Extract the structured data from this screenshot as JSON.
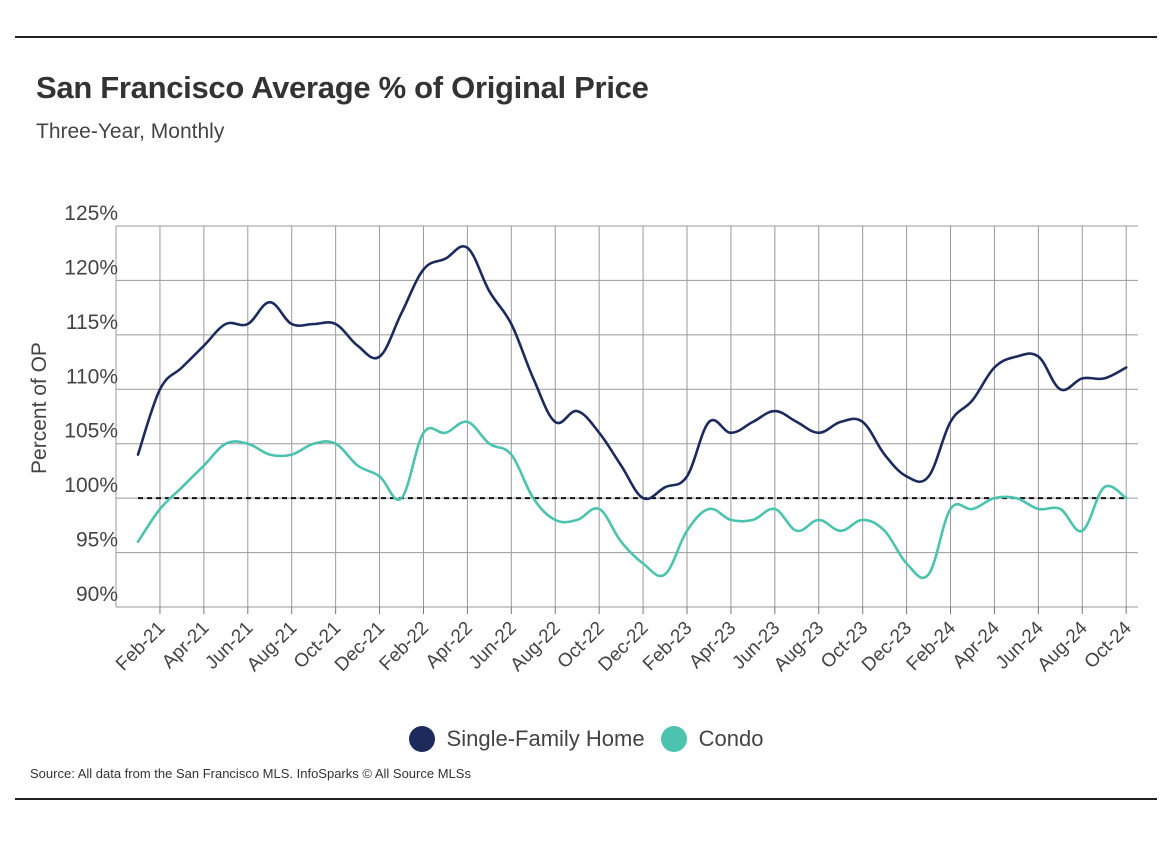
{
  "title": "San Francisco Average % of Original Price",
  "subtitle": "Three-Year, Monthly",
  "source": "Source:  All data from the San Francisco MLS. InfoSparks © All Source MLSs",
  "chart_data": {
    "type": "line",
    "title": "San Francisco Average % of Original Price",
    "subtitle": "Three-Year, Monthly",
    "xlabel": "",
    "ylabel": "Percent of OP",
    "ylim": [
      90,
      125
    ],
    "yticks": [
      90,
      95,
      100,
      105,
      110,
      115,
      120,
      125
    ],
    "ytick_labels": [
      "90%",
      "95%",
      "100%",
      "105%",
      "110%",
      "115%",
      "120%",
      "125%"
    ],
    "grid": true,
    "legend_position": "bottom",
    "reference_line": {
      "y": 100,
      "style": "dashed"
    },
    "x": [
      "Jan-21",
      "Feb-21",
      "Mar-21",
      "Apr-21",
      "May-21",
      "Jun-21",
      "Jul-21",
      "Aug-21",
      "Sep-21",
      "Oct-21",
      "Nov-21",
      "Dec-21",
      "Jan-22",
      "Feb-22",
      "Mar-22",
      "Apr-22",
      "May-22",
      "Jun-22",
      "Jul-22",
      "Aug-22",
      "Sep-22",
      "Oct-22",
      "Nov-22",
      "Dec-22",
      "Jan-23",
      "Feb-23",
      "Mar-23",
      "Apr-23",
      "May-23",
      "Jun-23",
      "Jul-23",
      "Aug-23",
      "Sep-23",
      "Oct-23",
      "Nov-23",
      "Dec-23",
      "Jan-24",
      "Feb-24",
      "Mar-24",
      "Apr-24",
      "May-24",
      "Jun-24",
      "Jul-24",
      "Aug-24",
      "Sep-24",
      "Oct-24"
    ],
    "x_tick_labels": [
      "Feb-21",
      "Apr-21",
      "Jun-21",
      "Aug-21",
      "Oct-21",
      "Dec-21",
      "Feb-22",
      "Apr-22",
      "Jun-22",
      "Aug-22",
      "Oct-22",
      "Dec-22",
      "Feb-23",
      "Apr-23",
      "Jun-23",
      "Aug-23",
      "Oct-23",
      "Dec-23",
      "Feb-24",
      "Apr-24",
      "Jun-24",
      "Aug-24",
      "Oct-24"
    ],
    "series": [
      {
        "name": "Single-Family Home",
        "color": "#1c2a5c",
        "values": [
          104,
          110,
          112,
          114,
          116,
          116,
          118,
          116,
          116,
          116,
          114,
          113,
          117,
          121,
          122,
          123,
          119,
          116,
          111,
          107,
          108,
          106,
          103,
          100,
          101,
          102,
          107,
          106,
          107,
          108,
          107,
          106,
          107,
          107,
          104,
          102,
          102,
          107,
          109,
          112,
          113,
          113,
          110,
          111,
          111,
          112
        ]
      },
      {
        "name": "Condo",
        "color": "#4cc3ae",
        "values": [
          96,
          99,
          101,
          103,
          105,
          105,
          104,
          104,
          105,
          105,
          103,
          102,
          100,
          106,
          106,
          107,
          105,
          104,
          100,
          98,
          98,
          99,
          96,
          94,
          93,
          97,
          99,
          98,
          98,
          99,
          97,
          98,
          97,
          98,
          97,
          94,
          93,
          99,
          99,
          100,
          100,
          99,
          99,
          97,
          101,
          100
        ]
      }
    ]
  }
}
